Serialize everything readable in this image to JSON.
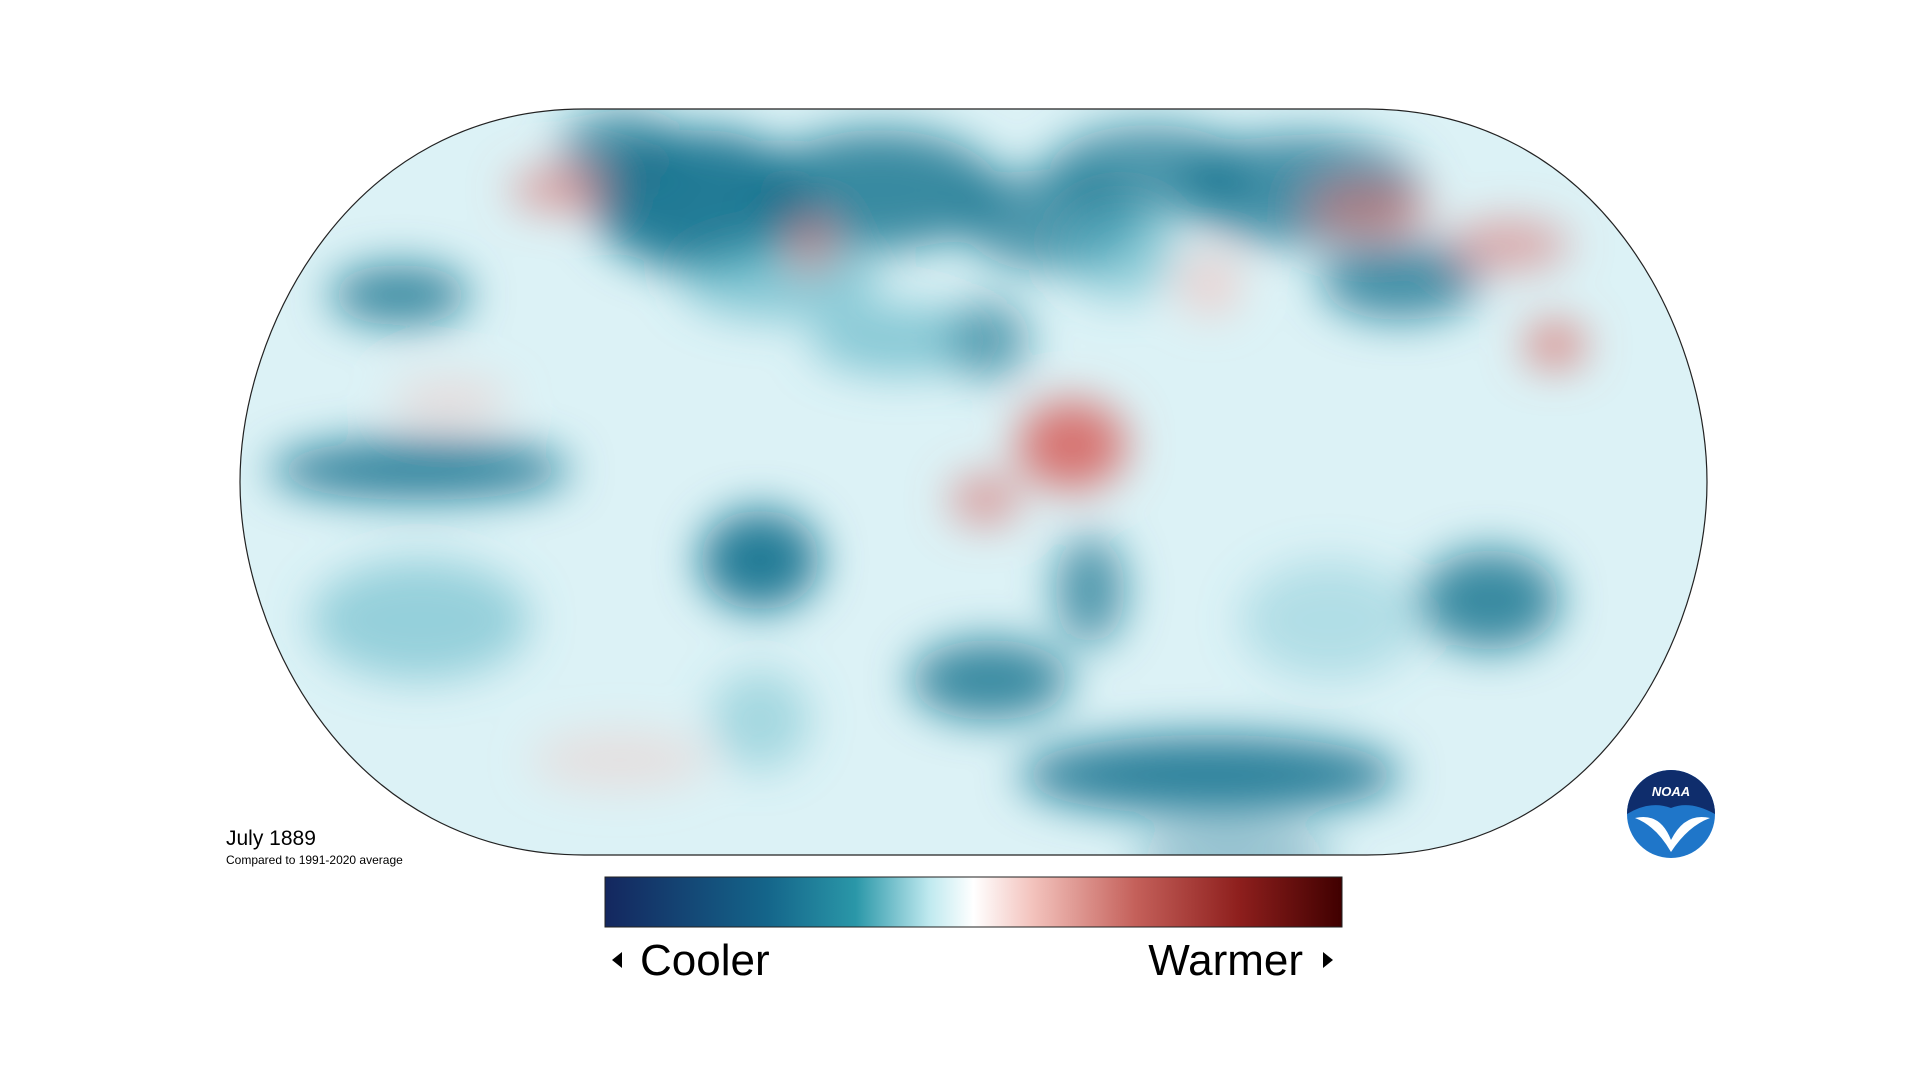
{
  "map": {
    "title": "July 1889",
    "subtitle": "Compared to 1991-2020 average"
  },
  "legend": {
    "low_label": "Cooler",
    "high_label": "Warmer"
  },
  "logo": {
    "text": "NOAA"
  }
}
